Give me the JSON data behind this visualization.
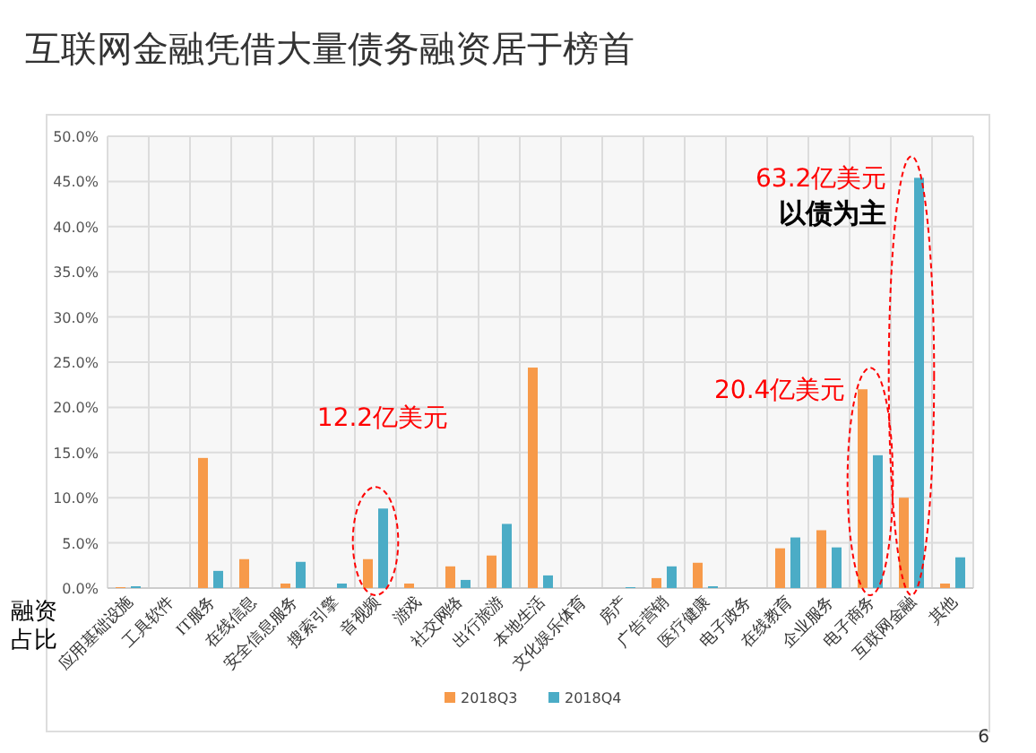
{
  "chart_data": {
    "type": "bar",
    "title": "互联网金融凭借大量债务融资居于榜首",
    "ylabel": "融资占比",
    "categories": [
      "应用基础设施",
      "工具软件",
      "IT服务",
      "在线信息",
      "安全信息服务",
      "搜索引擎",
      "音视频",
      "游戏",
      "社交网络",
      "出行旅游",
      "本地生活",
      "文化娱乐体育",
      "房产",
      "广告营销",
      "医疗健康",
      "电子政务",
      "在线教育",
      "企业服务",
      "电子商务",
      "互联网金融",
      "其他"
    ],
    "series": [
      {
        "name": "2018Q3",
        "color": "#f79a4a",
        "values": [
          0.1,
          0,
          14.4,
          3.2,
          0.5,
          0,
          3.2,
          0.5,
          2.4,
          3.6,
          24.4,
          0,
          0,
          1.1,
          2.8,
          0,
          4.4,
          6.4,
          22.0,
          10.0,
          0.5
        ]
      },
      {
        "name": "2018Q4",
        "color": "#4bacc6",
        "values": [
          0.2,
          0,
          1.9,
          0,
          2.9,
          0.5,
          8.8,
          0,
          0.9,
          7.1,
          1.4,
          0,
          0.1,
          2.4,
          0.2,
          0,
          5.6,
          4.5,
          14.7,
          45.4,
          3.4
        ]
      }
    ],
    "ylim": [
      0,
      50
    ],
    "yticks": [
      {
        "value": 0,
        "label": "0.0%"
      },
      {
        "value": 5,
        "label": "5.0%"
      },
      {
        "value": 10,
        "label": "10.0%"
      },
      {
        "value": 15,
        "label": "15.0%"
      },
      {
        "value": 20,
        "label": "20.0%"
      },
      {
        "value": 25,
        "label": "25.0%"
      },
      {
        "value": 30,
        "label": "30.0%"
      },
      {
        "value": 35,
        "label": "35.0%"
      },
      {
        "value": 40,
        "label": "40.0%"
      },
      {
        "value": 45,
        "label": "45.0%"
      },
      {
        "value": 50,
        "label": "50.0%"
      }
    ],
    "grid": true,
    "legend": "bottom",
    "annotations": [
      {
        "text": "12.2亿美元",
        "x": "音视频",
        "y": 8.8
      },
      {
        "text": "20.4亿美元",
        "x": "电子商务",
        "y": 22.0
      },
      {
        "text": "63.2亿美元",
        "x": "互联网金融",
        "y": 45.4
      },
      {
        "text": "以债为主",
        "x": "互联网金融",
        "y": 45.4
      },
      "6"
    ]
  }
}
